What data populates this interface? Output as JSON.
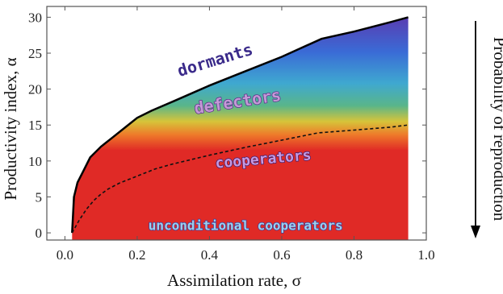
{
  "chart_data": {
    "type": "area",
    "xlabel": "Assimilation rate,   σ",
    "ylabel": "Productivity index,   α",
    "side_label": "Probability of reproduction",
    "xlim": [
      -0.05,
      1.0
    ],
    "ylim": [
      -1,
      31.5
    ],
    "x_ticks": [
      "0.0",
      "0.2",
      "0.4",
      "0.6",
      "0.8",
      "1.0"
    ],
    "x_tick_values": [
      0.0,
      0.2,
      0.4,
      0.6,
      0.8,
      1.0
    ],
    "y_ticks": [
      "0",
      "5",
      "10",
      "15",
      "20",
      "25",
      "30"
    ],
    "y_tick_values": [
      0,
      5,
      10,
      15,
      20,
      25,
      30
    ],
    "grid": false,
    "upper_boundary": {
      "name": "",
      "x": [
        0.02,
        0.025,
        0.035,
        0.05,
        0.07,
        0.1,
        0.13,
        0.17,
        0.2,
        0.24,
        0.3,
        0.4,
        0.5,
        0.6,
        0.71,
        0.8,
        0.9,
        0.95
      ],
      "y": [
        0,
        5,
        7,
        8.5,
        10.5,
        12,
        13.2,
        14.8,
        16,
        17,
        18.3,
        20.5,
        22.5,
        24.5,
        27,
        28,
        29.3,
        30
      ]
    },
    "lower_boundary": {
      "name": "",
      "x": [
        0.02,
        0.04,
        0.06,
        0.08,
        0.1,
        0.12,
        0.15,
        0.2,
        0.25,
        0.3,
        0.4,
        0.5,
        0.6,
        0.7,
        0.8,
        0.9,
        0.95
      ],
      "y": [
        0,
        1.8,
        3.3,
        4.5,
        5.4,
        6.1,
        6.9,
        7.9,
        8.9,
        9.6,
        10.8,
        11.9,
        12.9,
        13.9,
        14.3,
        14.7,
        15.0
      ]
    },
    "regions": [
      {
        "name": "dormants",
        "label": "dormants",
        "x": 0.42,
        "y": 23.3
      },
      {
        "name": "defectors",
        "label": "defectors",
        "x": 0.48,
        "y": 17.5
      },
      {
        "name": "cooperators",
        "label": "cooperators",
        "x": 0.55,
        "y": 9.6
      },
      {
        "name": "unconditional-cooperators",
        "label": "unconditional cooperators",
        "x": 0.5,
        "y": 0.4
      }
    ],
    "colors": {
      "red": "#e02a26",
      "orange": "#ee7a2a",
      "yellow": "#d6c43a",
      "green": "#59b58a",
      "teal": "#3fa8d0",
      "blue": "#3a6bd6",
      "purple": "#5a3bb0",
      "boundary": "#000000"
    }
  }
}
